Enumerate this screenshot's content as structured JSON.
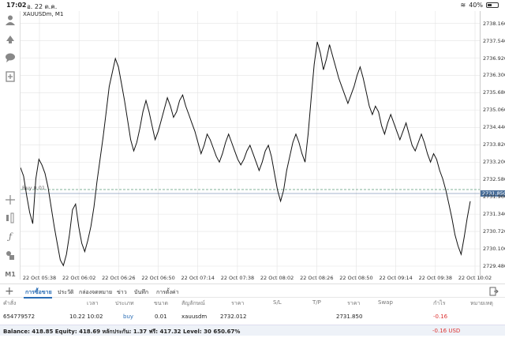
{
  "status": {
    "time": "17:02",
    "date": "อ. 22 ต.ค.",
    "battery": "40%",
    "battery_level": 0.4
  },
  "chart": {
    "symbol": "XAUUSDm, M1",
    "buy_label": "Buy 0.01",
    "current_price": "2731.850",
    "price_ticks": [
      "2738.160",
      "2737.540",
      "2736.920",
      "2736.300",
      "2735.680",
      "2735.060",
      "2734.440",
      "2733.820",
      "2733.200",
      "2732.580",
      "2731.960",
      "2731.340",
      "2730.720",
      "2730.100",
      "2729.480"
    ],
    "time_ticks": [
      "22 Oct 05:38",
      "22 Oct 06:02",
      "22 Oct 06:26",
      "22 Oct 06:50",
      "22 Oct 07:14",
      "22 Oct 07:38",
      "22 Oct 08:02",
      "22 Oct 08:26",
      "22 Oct 08:50",
      "22 Oct 09:14",
      "22 Oct 09:38",
      "22 Oct 10:02"
    ]
  },
  "chart_data": {
    "type": "line",
    "title": "XAUUSDm, M1",
    "ylim": [
      2729.0,
      2738.6
    ],
    "y": [
      2733.0,
      2732.7,
      2732.0,
      2731.4,
      2731.0,
      2732.6,
      2733.3,
      2733.1,
      2732.8,
      2732.3,
      2731.6,
      2730.9,
      2730.3,
      2729.7,
      2729.5,
      2729.9,
      2730.6,
      2731.5,
      2731.7,
      2730.9,
      2730.3,
      2730.0,
      2730.4,
      2730.9,
      2731.6,
      2732.5,
      2733.3,
      2734.1,
      2735.0,
      2735.9,
      2736.4,
      2736.9,
      2736.6,
      2736.0,
      2735.4,
      2734.7,
      2734.0,
      2733.6,
      2733.9,
      2734.4,
      2735.0,
      2735.4,
      2735.0,
      2734.5,
      2734.0,
      2734.3,
      2734.7,
      2735.1,
      2735.5,
      2735.2,
      2734.8,
      2735.0,
      2735.4,
      2735.6,
      2735.2,
      2734.9,
      2734.6,
      2734.3,
      2733.9,
      2733.5,
      2733.8,
      2734.2,
      2734.0,
      2733.7,
      2733.4,
      2733.2,
      2733.5,
      2733.9,
      2734.2,
      2733.9,
      2733.6,
      2733.3,
      2733.1,
      2733.3,
      2733.6,
      2733.8,
      2733.5,
      2733.2,
      2732.9,
      2733.2,
      2733.6,
      2733.8,
      2733.4,
      2732.8,
      2732.2,
      2731.8,
      2732.2,
      2732.9,
      2733.4,
      2733.9,
      2734.2,
      2733.9,
      2733.5,
      2733.2,
      2734.2,
      2735.5,
      2736.7,
      2737.5,
      2737.1,
      2736.5,
      2736.9,
      2737.4,
      2737.0,
      2736.6,
      2736.2,
      2735.9,
      2735.6,
      2735.3,
      2735.6,
      2735.9,
      2736.3,
      2736.6,
      2736.2,
      2735.7,
      2735.2,
      2734.9,
      2735.2,
      2735.0,
      2734.5,
      2734.2,
      2734.6,
      2734.9,
      2734.6,
      2734.3,
      2734.0,
      2734.3,
      2734.6,
      2734.2,
      2733.8,
      2733.6,
      2733.9,
      2734.2,
      2733.9,
      2733.5,
      2733.2,
      2733.5,
      2733.3,
      2732.9,
      2732.6,
      2732.2,
      2731.7,
      2731.2,
      2730.6,
      2730.2,
      2729.9,
      2730.5,
      2731.2,
      2731.8
    ],
    "xlabel": "",
    "ylabel": ""
  },
  "tabs": [
    "การซื้อขาย",
    "ประวัติ",
    "กล่องจดหมาย",
    "ข่าว",
    "บันทึก",
    "การตั้งค่า"
  ],
  "table": {
    "headers": [
      "คำสั่ง",
      "เวลา",
      "ประเภท",
      "ขนาด",
      "สัญลักษณ์",
      "ราคา",
      "S/L",
      "T/P",
      "ราคา",
      "Swap",
      "กำไร",
      "หมายเหตุ"
    ],
    "row": [
      "654779572",
      "10.22 10:02",
      "buy",
      "0.01",
      "xauusdm",
      "2732.012",
      "",
      "",
      "2731.850",
      "",
      "-0.16",
      ""
    ]
  },
  "balance": {
    "text": "Balance: 418.85 Equity: 418.69 หลักประกัน: 1.37 ฟรี: 417.32 Level: 30 650.67%",
    "profit": "-0.16  USD"
  }
}
